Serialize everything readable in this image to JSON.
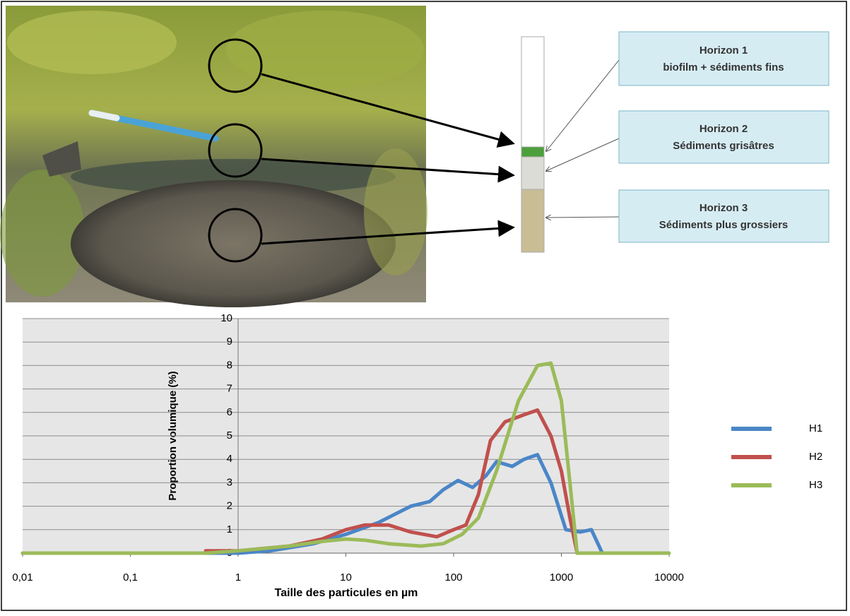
{
  "chart_data": {
    "type": "line",
    "log_x": true,
    "xlabel": "Taille des particules en µm",
    "ylabel": "Proportion volumique (%)",
    "xlim": [
      0.01,
      10000
    ],
    "ylim": [
      0,
      10
    ],
    "xticks": [
      {
        "value": 0.01,
        "label": "0,01"
      },
      {
        "value": 0.1,
        "label": "0,1"
      },
      1,
      10,
      100,
      1000,
      10000
    ],
    "yticks": [
      0,
      1,
      2,
      3,
      4,
      5,
      6,
      7,
      8,
      9,
      10
    ],
    "grid": true,
    "legend": "right",
    "series": [
      {
        "name": "H1",
        "color": "#4a86c8",
        "x": [
          0.01,
          1,
          2,
          5,
          10,
          20,
          40,
          60,
          80,
          110,
          150,
          200,
          250,
          350,
          450,
          600,
          800,
          1100,
          1500,
          1900,
          2400
        ],
        "values": [
          0,
          0,
          0.1,
          0.4,
          0.8,
          1.3,
          2.0,
          2.2,
          2.7,
          3.1,
          2.8,
          3.3,
          3.9,
          3.7,
          4.0,
          4.2,
          3.0,
          1.0,
          0.9,
          1.0,
          0
        ]
      },
      {
        "name": "H2",
        "color": "#c0504d",
        "x": [
          0.5,
          1,
          3,
          6,
          10,
          15,
          25,
          40,
          70,
          100,
          130,
          170,
          220,
          300,
          450,
          600,
          800,
          1000,
          1200,
          1400
        ],
        "values": [
          0.1,
          0.1,
          0.3,
          0.6,
          1.0,
          1.2,
          1.2,
          0.9,
          0.7,
          1.0,
          1.2,
          2.5,
          4.8,
          5.6,
          5.9,
          6.1,
          5.0,
          3.5,
          1.5,
          0
        ]
      },
      {
        "name": "H3",
        "color": "#9bbb59",
        "x": [
          0.01,
          0.5,
          1,
          3,
          6,
          10,
          15,
          25,
          50,
          80,
          120,
          170,
          250,
          400,
          600,
          800,
          1000,
          1200,
          1400,
          10000
        ],
        "values": [
          0,
          0,
          0.1,
          0.3,
          0.5,
          0.6,
          0.55,
          0.4,
          0.3,
          0.4,
          0.8,
          1.5,
          3.5,
          6.5,
          8.0,
          8.1,
          6.5,
          3.0,
          0,
          0
        ]
      }
    ]
  },
  "diagram": {
    "boxes": [
      {
        "title": "Horizon 1",
        "subtitle": "biofilm + sédiments fins"
      },
      {
        "title": "Horizon 2",
        "subtitle": "Sédiments grisâtres"
      },
      {
        "title": "Horizon 3",
        "subtitle": "Sédiments plus grossiers"
      }
    ]
  }
}
